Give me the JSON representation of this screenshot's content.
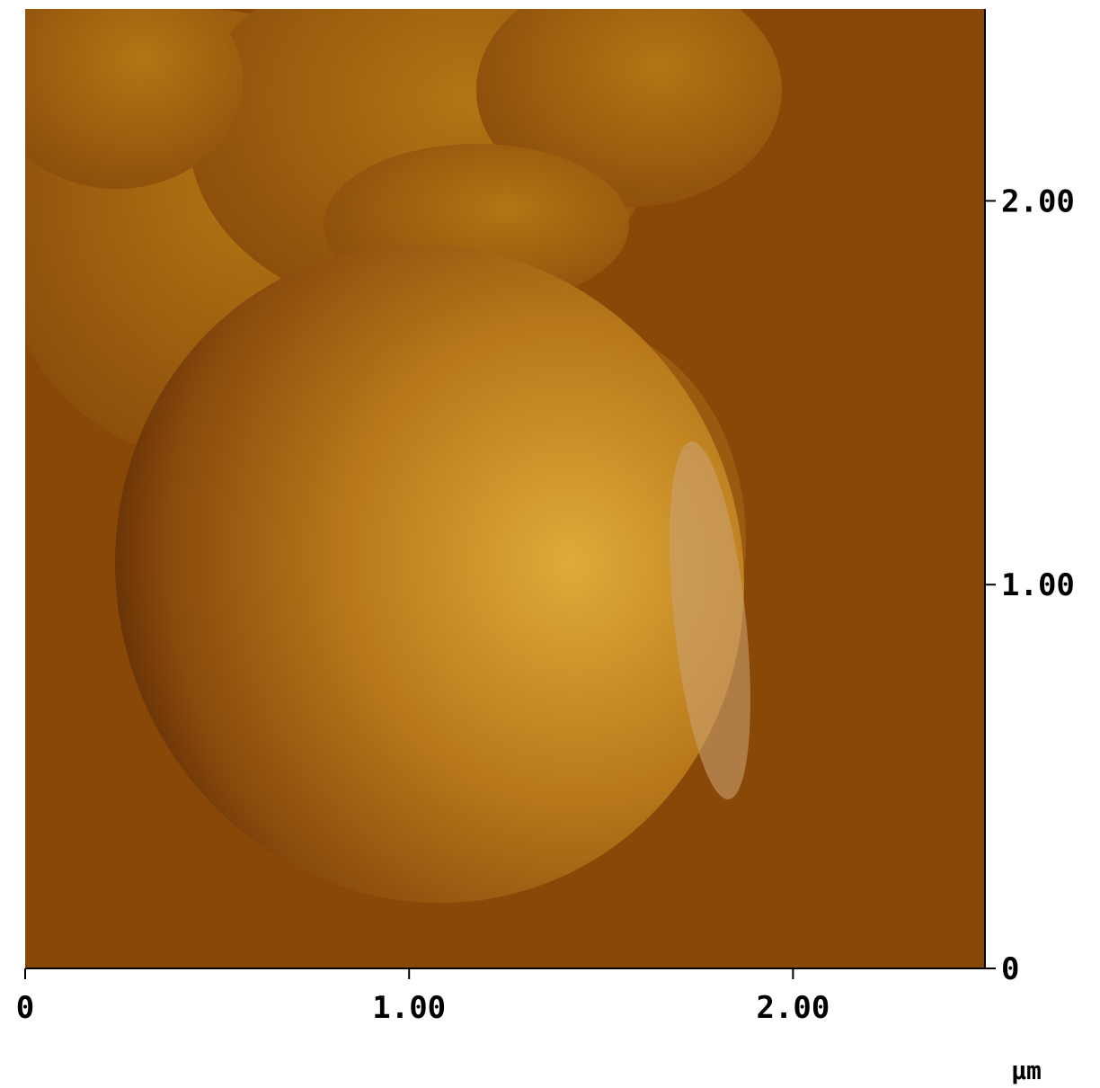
{
  "chart_data": {
    "type": "image",
    "xlabel": "µm",
    "xlim": [
      0,
      2.5
    ],
    "ylim": [
      0,
      2.5
    ],
    "xticks": [
      0,
      {
        "value": 1,
        "label": "1.00"
      },
      {
        "value": 2,
        "label": "2.00"
      }
    ],
    "yticks": [
      0,
      {
        "value": 1,
        "label": "1.00"
      },
      {
        "value": 2,
        "label": "2.00"
      }
    ]
  }
}
